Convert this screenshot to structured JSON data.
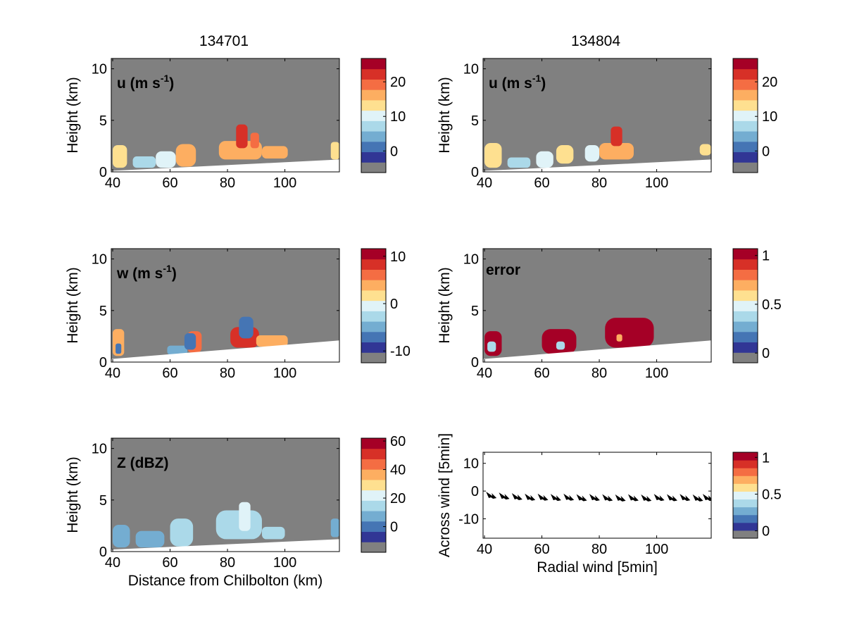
{
  "figure": {
    "column_titles": [
      "134701",
      "134804"
    ]
  },
  "colormap": {
    "band_colors": [
      "#808080",
      "#313695",
      "#4575b4",
      "#74add1",
      "#abd9e9",
      "#e0f3f8",
      "#fee090",
      "#fdae61",
      "#f46d43",
      "#d73027",
      "#a50026"
    ],
    "missing_color": "#808080",
    "blocked_color": "#808080",
    "ground_color": "#ffffff"
  },
  "chart_data": [
    {
      "id": "u_134701",
      "type": "heatmap",
      "label": "u (m s",
      "label_sup": "-1",
      "label_tail": ")",
      "xlabel": "",
      "ylabel": "Height (km)",
      "xlim": [
        39.5,
        119
      ],
      "ylim": [
        0,
        11
      ],
      "xticks": [
        40,
        60,
        80,
        100
      ],
      "yticks": [
        0,
        5,
        10
      ],
      "colorbar": {
        "ticks": [
          0,
          10,
          20
        ],
        "range": [
          -6.25,
          26.75
        ],
        "bands": 11
      },
      "blocked_region": {
        "x_start": 39.5,
        "height_at_x_start": 6.5,
        "reaches_top_at_x": 64
      },
      "ground_line": {
        "height_at_x_start": 0.1,
        "height_at_x_end": 1.2
      },
      "echo_regions": [
        {
          "x": [
            40,
            45
          ],
          "z": [
            0.4,
            2.6
          ],
          "value": 14
        },
        {
          "x": [
            47,
            55
          ],
          "z": [
            0.4,
            1.5
          ],
          "value": 8
        },
        {
          "x": [
            55,
            62
          ],
          "z": [
            0.4,
            2.0
          ],
          "value": 9
        },
        {
          "x": [
            62,
            69
          ],
          "z": [
            0.5,
            2.7
          ],
          "value": 15
        },
        {
          "x": [
            77,
            92
          ],
          "z": [
            1.2,
            3.0
          ],
          "value": 16
        },
        {
          "x": [
            83,
            87
          ],
          "z": [
            2.3,
            4.6
          ],
          "value": 22
        },
        {
          "x": [
            88,
            91
          ],
          "z": [
            2.3,
            3.8
          ],
          "value": 20
        },
        {
          "x": [
            92,
            101
          ],
          "z": [
            1.3,
            2.5
          ],
          "value": 15
        },
        {
          "x": [
            116,
            119
          ],
          "z": [
            1.2,
            2.9
          ],
          "value": 14
        }
      ]
    },
    {
      "id": "u_134804",
      "type": "heatmap",
      "label": "u (m s",
      "label_sup": "-1",
      "label_tail": ")",
      "xlabel": "",
      "ylabel": "Height (km)",
      "xlim": [
        39.5,
        119
      ],
      "ylim": [
        0,
        11
      ],
      "xticks": [
        40,
        60,
        80,
        100
      ],
      "yticks": [
        0,
        5,
        10
      ],
      "colorbar": {
        "ticks": [
          0,
          10,
          20
        ],
        "range": [
          -6.25,
          26.75
        ],
        "bands": 11
      },
      "blocked_region": {
        "x_start": 39.5,
        "height_at_x_start": 6.5,
        "reaches_top_at_x": 64
      },
      "ground_line": {
        "height_at_x_start": 0.1,
        "height_at_x_end": 1.2
      },
      "echo_regions": [
        {
          "x": [
            40,
            46
          ],
          "z": [
            0.4,
            2.8
          ],
          "value": 13
        },
        {
          "x": [
            48,
            56
          ],
          "z": [
            0.4,
            1.4
          ],
          "value": 8
        },
        {
          "x": [
            58,
            64
          ],
          "z": [
            0.4,
            2.0
          ],
          "value": 10
        },
        {
          "x": [
            65,
            71
          ],
          "z": [
            0.8,
            2.6
          ],
          "value": 12
        },
        {
          "x": [
            75,
            80
          ],
          "z": [
            1.0,
            2.6
          ],
          "value": 9
        },
        {
          "x": [
            80,
            92
          ],
          "z": [
            1.2,
            2.8
          ],
          "value": 16
        },
        {
          "x": [
            84,
            88
          ],
          "z": [
            2.5,
            4.4
          ],
          "value": 21
        },
        {
          "x": [
            115,
            119
          ],
          "z": [
            1.6,
            2.7
          ],
          "value": 14
        }
      ]
    },
    {
      "id": "w_134701",
      "type": "heatmap",
      "label": "w (m s",
      "label_sup": "-1",
      "label_tail": ")",
      "xlabel": "",
      "ylabel": "Height (km)",
      "xlim": [
        39.5,
        119
      ],
      "ylim": [
        0,
        11
      ],
      "xticks": [
        40,
        60,
        80,
        100
      ],
      "yticks": [
        0,
        5,
        10
      ],
      "colorbar": {
        "ticks": [
          -10,
          0,
          10
        ],
        "range": [
          -12.5,
          11.6
        ],
        "bands": 11
      },
      "blocked_region": {
        "x_start": 39.5,
        "height_at_x_start": 6.3,
        "reaches_top_at_x": 65
      },
      "ground_line": {
        "height_at_x_start": 0.3,
        "height_at_x_end": 2.1
      },
      "echo_regions": [
        {
          "x": [
            40,
            44
          ],
          "z": [
            0.6,
            3.2
          ],
          "value": 3
        },
        {
          "x": [
            41,
            43
          ],
          "z": [
            0.8,
            1.8
          ],
          "value": -6
        },
        {
          "x": [
            59,
            66
          ],
          "z": [
            0.7,
            1.6
          ],
          "value": -5
        },
        {
          "x": [
            66,
            71
          ],
          "z": [
            0.9,
            3.0
          ],
          "value": 6
        },
        {
          "x": [
            65,
            69
          ],
          "z": [
            1.2,
            2.8
          ],
          "value": -8
        },
        {
          "x": [
            81,
            91
          ],
          "z": [
            1.4,
            3.4
          ],
          "value": 8
        },
        {
          "x": [
            84,
            89
          ],
          "z": [
            2.3,
            4.4
          ],
          "value": -7
        },
        {
          "x": [
            90,
            101
          ],
          "z": [
            1.5,
            2.6
          ],
          "value": 4
        }
      ]
    },
    {
      "id": "error_134804",
      "type": "heatmap",
      "label": "error",
      "label_sup": "",
      "label_tail": "",
      "xlabel": "",
      "ylabel": "Height (km)",
      "xlim": [
        39.5,
        119
      ],
      "ylim": [
        0,
        11
      ],
      "xticks": [
        40,
        60,
        80,
        100
      ],
      "yticks": [
        0,
        5,
        10
      ],
      "colorbar": {
        "ticks": [
          0,
          0.5,
          1
        ],
        "range": [
          -0.1,
          1.07
        ],
        "bands": 11
      },
      "blocked_region": {
        "x_start": 39.5,
        "height_at_x_start": 6.3,
        "reaches_top_at_x": 65
      },
      "ground_line": {
        "height_at_x_start": 0.3,
        "height_at_x_end": 2.1
      },
      "echo_regions": [
        {
          "x": [
            40,
            46
          ],
          "z": [
            0.6,
            3.0
          ],
          "value": 1.0
        },
        {
          "x": [
            41,
            44
          ],
          "z": [
            1.0,
            2.0
          ],
          "value": 0.4
        },
        {
          "x": [
            60,
            72
          ],
          "z": [
            0.8,
            3.2
          ],
          "value": 1.0
        },
        {
          "x": [
            65,
            68
          ],
          "z": [
            1.2,
            2.0
          ],
          "value": 0.4
        },
        {
          "x": [
            82,
            99
          ],
          "z": [
            1.4,
            4.3
          ],
          "value": 1.0
        },
        {
          "x": [
            86,
            88
          ],
          "z": [
            2.0,
            2.7
          ],
          "value": 0.7
        }
      ]
    },
    {
      "id": "Z_134701",
      "type": "heatmap",
      "label": "Z (dBZ)",
      "label_sup": "",
      "label_tail": "",
      "xlabel": "Distance from Chilbolton (km)",
      "ylabel": "Height (km)",
      "xlim": [
        39.5,
        119
      ],
      "ylim": [
        0,
        11
      ],
      "xticks": [
        40,
        60,
        80,
        100
      ],
      "yticks": [
        0,
        5,
        10
      ],
      "colorbar": {
        "ticks": [
          0,
          20,
          40,
          60
        ],
        "range": [
          -18,
          62
        ],
        "bands": 11
      },
      "blocked_region": {
        "x_start": 39.5,
        "height_at_x_start": 6.6,
        "reaches_top_at_x": 64
      },
      "ground_line": {
        "height_at_x_start": 0.2,
        "height_at_x_end": 1.2
      },
      "echo_regions": [
        {
          "x": [
            40,
            46
          ],
          "z": [
            0.4,
            2.6
          ],
          "value": 8
        },
        {
          "x": [
            48,
            58
          ],
          "z": [
            0.4,
            2.0
          ],
          "value": 5
        },
        {
          "x": [
            60,
            68
          ],
          "z": [
            0.5,
            3.2
          ],
          "value": 14
        },
        {
          "x": [
            76,
            92
          ],
          "z": [
            1.2,
            4.0
          ],
          "value": 18
        },
        {
          "x": [
            84,
            88
          ],
          "z": [
            2.0,
            4.8
          ],
          "value": 22
        },
        {
          "x": [
            92,
            100
          ],
          "z": [
            1.2,
            2.4
          ],
          "value": 12
        },
        {
          "x": [
            116,
            119
          ],
          "z": [
            1.4,
            3.2
          ],
          "value": 10
        }
      ]
    },
    {
      "id": "wind_vectors",
      "type": "scatter",
      "label": "",
      "xlabel": "Radial wind [5min]",
      "ylabel": "Across wind [5min]",
      "xlim": [
        39.5,
        119
      ],
      "ylim": [
        -17,
        14
      ],
      "xticks": [
        40,
        60,
        80,
        100
      ],
      "yticks": [
        -10,
        0,
        10
      ],
      "colorbar": {
        "ticks": [
          0,
          0.5,
          1
        ],
        "range": [
          -0.1,
          1.07
        ],
        "bands": 11
      },
      "arrows": {
        "x": [
          42,
          46.5,
          51,
          55.5,
          60,
          64.5,
          69,
          73.5,
          78,
          82.5,
          87,
          91.5,
          96,
          100.5,
          105,
          109.5,
          114,
          117.5
        ],
        "y": [
          -1.5,
          -1.8,
          -2.0,
          -2.2,
          -2.2,
          -2.3,
          -2.2,
          -2.4,
          -2.3,
          -2.4,
          -2.5,
          -2.4,
          -2.5,
          -2.3,
          -2.4,
          -2.3,
          -2.5,
          -2.3
        ],
        "color": "#000000"
      }
    }
  ]
}
